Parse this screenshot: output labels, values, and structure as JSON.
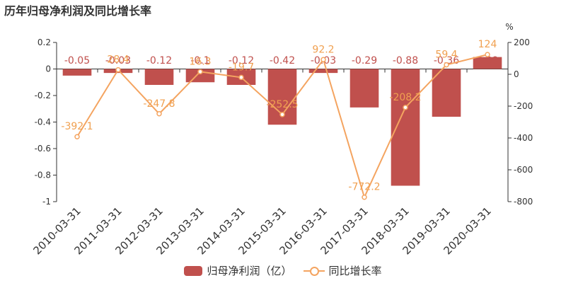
{
  "title": "历年归母净利润及同比增长率",
  "colors": {
    "bar": "#c0504d",
    "line": "#f4a460",
    "axis": "#333333",
    "bar_label": "#c0504d",
    "line_label": "#f0a050"
  },
  "legend": {
    "bar_label": "归母净利润（亿）",
    "line_label": "同比增长率"
  },
  "chart_data": {
    "type": "bar+line",
    "title": "历年归母净利润及同比增长率",
    "categories": [
      "2010-03-31",
      "2011-03-31",
      "2012-03-31",
      "2013-03-31",
      "2014-03-31",
      "2015-03-31",
      "2016-03-31",
      "2017-03-31",
      "2018-03-31",
      "2019-03-31",
      "2020-03-31"
    ],
    "series": [
      {
        "name": "归母净利润（亿）",
        "type": "bar",
        "axis": "left",
        "values": [
          -0.05,
          -0.03,
          -0.12,
          -0.1,
          -0.12,
          -0.42,
          -0.03,
          -0.29,
          -0.88,
          -0.36,
          0.09
        ],
        "labels": [
          "-0.05",
          "-0.03",
          "-0.12",
          "-0.1",
          "-0.12",
          "-0.42",
          "-0.03",
          "-0.29",
          "-0.88",
          "-0.36",
          "0.09"
        ]
      },
      {
        "name": "同比增长率",
        "type": "line",
        "axis": "right",
        "values": [
          -392.1,
          28.4,
          -247.8,
          16.3,
          -19.7,
          -252.5,
          92.2,
          -772.2,
          -208.2,
          59.4,
          124
        ],
        "labels": [
          "-392.1",
          "28.4",
          "-247.8",
          "16.3",
          "-19.7",
          "-252.5",
          "92.2",
          "-772.2",
          "-208.2",
          "59.4",
          "124"
        ]
      }
    ],
    "y_left": {
      "ylim": [
        -1,
        0.2
      ],
      "ticks": [
        "0.2",
        "0",
        "-0.2",
        "-0.4",
        "-0.6",
        "-0.8",
        "-1"
      ]
    },
    "y_right": {
      "unit": "%",
      "ylim": [
        -800,
        200
      ],
      "ticks": [
        "200",
        "0",
        "-200",
        "-400",
        "-600",
        "-800"
      ]
    },
    "legend_position": "bottom-center",
    "grid": false
  }
}
